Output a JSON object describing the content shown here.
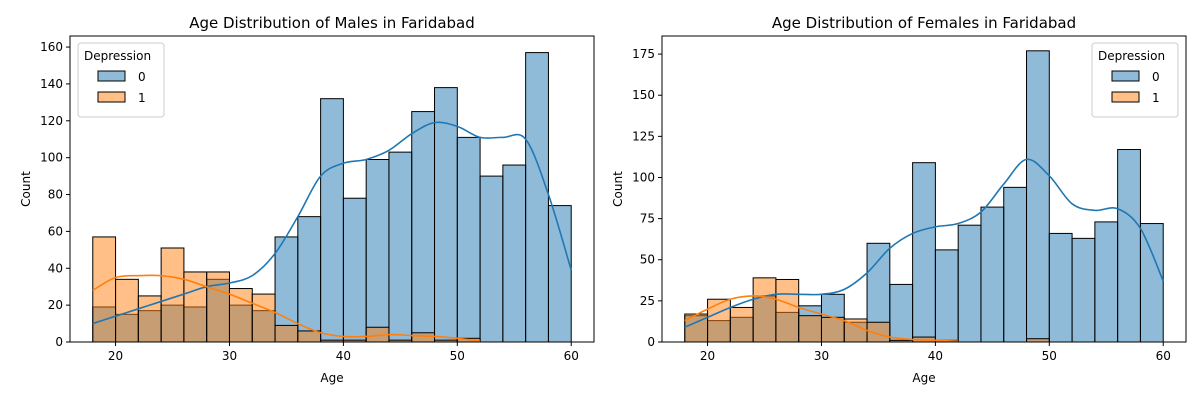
{
  "chart_data": [
    {
      "type": "histogram",
      "title": "Age Distribution of Males in Faridabad",
      "xlabel": "Age",
      "ylabel": "Count",
      "xlim": [
        16,
        62
      ],
      "ylim": [
        0,
        166
      ],
      "xticks": [
        20,
        30,
        40,
        50,
        60
      ],
      "yticks": [
        0,
        20,
        40,
        60,
        80,
        100,
        120,
        140,
        160
      ],
      "legend": {
        "title": "Depression",
        "position": "upper left",
        "entries": [
          "0",
          "1"
        ]
      },
      "bin_edges": [
        18,
        20,
        22,
        24,
        26,
        28,
        30,
        32,
        34,
        36,
        38,
        40,
        42,
        44,
        46,
        48,
        50,
        52,
        54,
        56,
        58,
        60
      ],
      "series": [
        {
          "name": "0",
          "color": "#1f77b4",
          "counts": [
            19,
            15,
            17,
            20,
            19,
            34,
            20,
            17,
            57,
            68,
            132,
            78,
            99,
            103,
            125,
            138,
            111,
            90,
            96,
            157,
            74
          ],
          "kde_x": [
            18,
            20,
            22,
            24,
            26,
            28,
            30,
            32,
            34,
            36,
            38,
            40,
            42,
            44,
            46,
            48,
            50,
            52,
            54,
            56,
            58,
            60
          ],
          "kde_y": [
            10,
            14,
            18,
            22,
            26,
            30,
            32,
            36,
            48,
            68,
            90,
            97,
            99,
            104,
            113,
            119,
            117,
            111,
            111,
            110,
            80,
            39
          ]
        },
        {
          "name": "1",
          "color": "#ff7f0e",
          "counts": [
            57,
            34,
            25,
            51,
            38,
            38,
            29,
            26,
            9,
            6,
            1,
            1,
            8,
            1,
            5,
            1,
            2,
            0,
            0,
            0,
            0
          ],
          "kde_x": [
            18,
            20,
            22,
            24,
            26,
            28,
            30,
            32,
            34,
            36,
            38,
            40,
            42,
            44,
            46,
            48,
            50,
            52
          ],
          "kde_y": [
            28,
            35,
            36,
            36,
            34,
            30,
            26,
            21,
            16,
            10,
            5,
            3,
            3,
            4,
            3.5,
            3,
            2,
            0.5
          ]
        }
      ]
    },
    {
      "type": "histogram",
      "title": "Age Distribution of Females in Faridabad",
      "xlabel": "Age",
      "ylabel": "Count",
      "xlim": [
        16,
        62
      ],
      "ylim": [
        0,
        186
      ],
      "xticks": [
        20,
        30,
        40,
        50,
        60
      ],
      "yticks": [
        0,
        25,
        50,
        75,
        100,
        125,
        150,
        175
      ],
      "legend": {
        "title": "Depression",
        "position": "upper right",
        "entries": [
          "0",
          "1"
        ]
      },
      "bin_edges": [
        18,
        20,
        22,
        24,
        26,
        28,
        30,
        32,
        34,
        36,
        38,
        40,
        42,
        44,
        46,
        48,
        50,
        52,
        54,
        56,
        58,
        60
      ],
      "series": [
        {
          "name": "0",
          "color": "#1f77b4",
          "counts": [
            16,
            13,
            15,
            28,
            18,
            22,
            29,
            12,
            60,
            35,
            109,
            56,
            71,
            82,
            94,
            177,
            66,
            63,
            73,
            117,
            72
          ],
          "kde_x": [
            18,
            20,
            22,
            24,
            26,
            28,
            30,
            32,
            34,
            36,
            38,
            40,
            42,
            44,
            46,
            48,
            50,
            52,
            54,
            56,
            58,
            60
          ],
          "kde_y": [
            9,
            15,
            21,
            26,
            29,
            29,
            29,
            32,
            42,
            57,
            66,
            70,
            72,
            79,
            96,
            111,
            101,
            84,
            80,
            81,
            69,
            37
          ]
        },
        {
          "name": "1",
          "color": "#ff7f0e",
          "counts": [
            17,
            26,
            21,
            39,
            38,
            16,
            15,
            14,
            12,
            1,
            3,
            1,
            0,
            0,
            0,
            2,
            0,
            0,
            0,
            0,
            0
          ],
          "kde_x": [
            18,
            20,
            22,
            24,
            26,
            28,
            30,
            32,
            34,
            36,
            38,
            40,
            42
          ],
          "kde_y": [
            13,
            20,
            26,
            28,
            26,
            21,
            17,
            13,
            7,
            3,
            1.5,
            1,
            0.5
          ]
        }
      ]
    }
  ]
}
